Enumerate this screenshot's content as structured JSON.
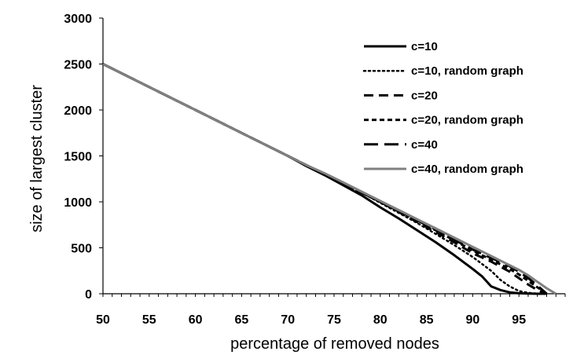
{
  "chart_data": {
    "type": "line",
    "title": "",
    "xlabel": "percentage of removed nodes",
    "ylabel": "size of largest cluster",
    "xlim": [
      50,
      100
    ],
    "ylim": [
      0,
      3000
    ],
    "x_ticks": [
      50,
      55,
      60,
      65,
      70,
      75,
      80,
      85,
      90,
      95
    ],
    "y_ticks": [
      0,
      500,
      1000,
      1500,
      2000,
      2500,
      3000
    ],
    "x_tick_labels": [
      "50",
      "55",
      "60",
      "65",
      "70",
      "75",
      "80",
      "85",
      "90",
      "95"
    ],
    "y_tick_labels": [
      "0",
      "500",
      "1000",
      "1500",
      "2000",
      "2500",
      "3000"
    ],
    "grid": false,
    "legend_position": "top-right",
    "series": [
      {
        "name": "c=10",
        "color": "#000000",
        "style": "solid",
        "x": [
          50,
          55,
          60,
          65,
          70,
          72,
          74,
          76,
          78,
          80,
          82,
          84,
          86,
          88,
          90,
          91,
          92,
          93,
          94,
          95,
          96,
          97,
          98
        ],
        "y": [
          2500,
          2250,
          2000,
          1750,
          1500,
          1390,
          1290,
          1180,
          1070,
          940,
          820,
          690,
          560,
          420,
          270,
          190,
          80,
          40,
          15,
          5,
          2,
          0,
          0
        ]
      },
      {
        "name": "c=10, random graph",
        "color": "#000000",
        "style": "dotted",
        "x": [
          50,
          55,
          60,
          65,
          70,
          72,
          74,
          76,
          78,
          80,
          82,
          84,
          86,
          88,
          90,
          92,
          93,
          94,
          95,
          96,
          97,
          98
        ],
        "y": [
          2500,
          2250,
          2000,
          1750,
          1500,
          1400,
          1300,
          1200,
          1100,
          990,
          880,
          770,
          650,
          530,
          400,
          250,
          150,
          80,
          30,
          10,
          2,
          0
        ]
      },
      {
        "name": "c=20",
        "color": "#000000",
        "style": "dashed",
        "x": [
          50,
          55,
          60,
          65,
          70,
          72,
          74,
          76,
          78,
          80,
          82,
          84,
          86,
          88,
          90,
          92,
          94,
          95,
          96,
          97,
          98
        ],
        "y": [
          2500,
          2250,
          2000,
          1750,
          1500,
          1400,
          1300,
          1200,
          1100,
          1000,
          890,
          780,
          670,
          560,
          440,
          350,
          240,
          170,
          100,
          40,
          0
        ]
      },
      {
        "name": "c=20, random graph",
        "color": "#000000",
        "style": "short-dashed",
        "x": [
          50,
          55,
          60,
          65,
          70,
          72,
          74,
          76,
          78,
          80,
          82,
          84,
          86,
          88,
          90,
          92,
          94,
          95,
          96,
          97,
          98
        ],
        "y": [
          2500,
          2250,
          2000,
          1750,
          1500,
          1400,
          1300,
          1200,
          1100,
          1000,
          900,
          800,
          690,
          580,
          470,
          370,
          270,
          210,
          140,
          70,
          0
        ]
      },
      {
        "name": "c=40",
        "color": "#000000",
        "style": "long-dashed",
        "x": [
          50,
          55,
          60,
          65,
          70,
          72,
          74,
          76,
          78,
          80,
          82,
          84,
          86,
          88,
          90,
          92,
          94,
          95,
          96,
          97,
          98
        ],
        "y": [
          2500,
          2250,
          2000,
          1750,
          1500,
          1400,
          1300,
          1200,
          1100,
          1000,
          900,
          800,
          700,
          590,
          480,
          390,
          300,
          240,
          170,
          90,
          0
        ]
      },
      {
        "name": "c=40, random graph",
        "color": "#808080",
        "style": "solid",
        "x": [
          50,
          55,
          60,
          65,
          70,
          72,
          74,
          76,
          78,
          80,
          82,
          84,
          86,
          88,
          90,
          92,
          94,
          95,
          96,
          97,
          98,
          99
        ],
        "y": [
          2500,
          2250,
          2000,
          1750,
          1500,
          1400,
          1310,
          1210,
          1110,
          1010,
          910,
          810,
          710,
          610,
          510,
          410,
          310,
          260,
          200,
          130,
          60,
          0
        ]
      }
    ]
  }
}
